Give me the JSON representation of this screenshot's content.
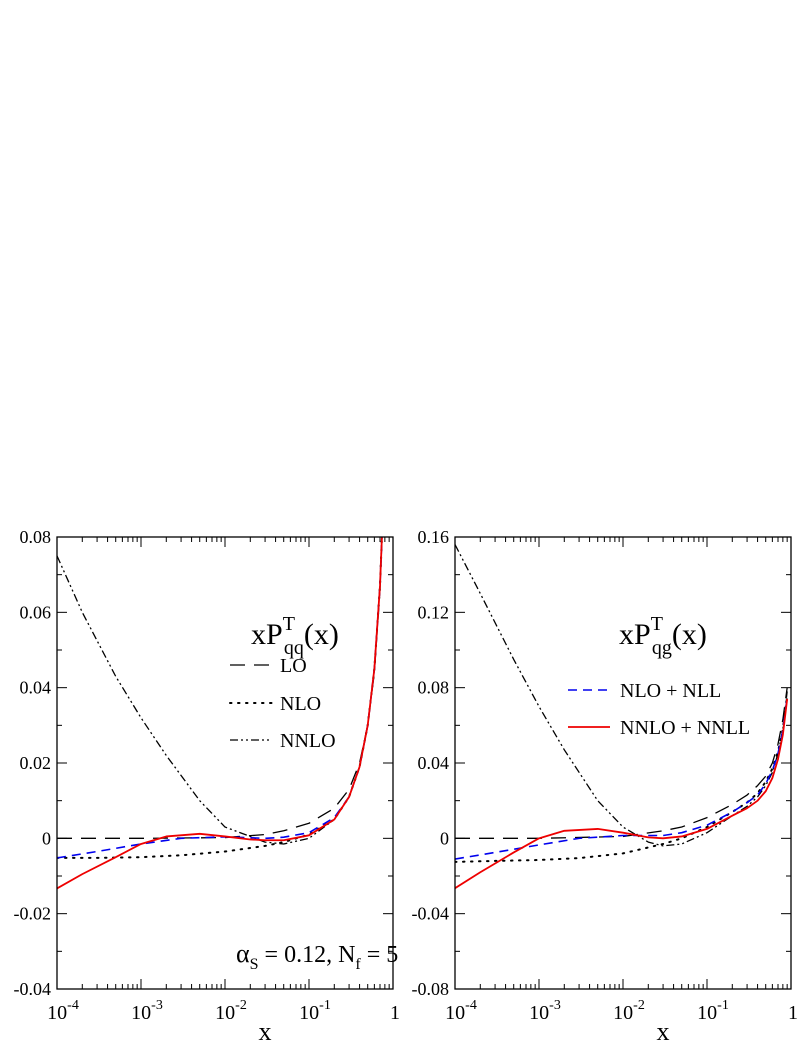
{
  "chart_data": [
    {
      "type": "line",
      "x_scale": "log",
      "xlim": [
        0.0001,
        1
      ],
      "ylim": [
        -0.04,
        0.08
      ],
      "x_ticks": [
        0.0001,
        0.001,
        0.01,
        0.1,
        1
      ],
      "x_tick_labels": [
        {
          "base": "10",
          "exp": "-4"
        },
        {
          "base": "10",
          "exp": "-3"
        },
        {
          "base": "10",
          "exp": "-2"
        },
        {
          "base": "10",
          "exp": "-1"
        },
        {
          "base": "1",
          "exp": ""
        }
      ],
      "y_ticks": [
        -0.04,
        -0.02,
        0,
        0.02,
        0.04,
        0.06,
        0.08
      ],
      "y_tick_labels": [
        "-0.04",
        "-0.02",
        "0",
        "0.02",
        "0.04",
        "0.06",
        "0.08"
      ],
      "xlabel": "x",
      "title": {
        "main": "xP",
        "sup": "T",
        "sub": "qq",
        "arg": "(x)"
      },
      "annotation": {
        "alpha": "α",
        "alpha_sub": "S",
        "alpha_rest": " = 0.12,  N",
        "nf_sub": "f",
        "nf_rest": " = 5"
      },
      "legend_position": "upper-right",
      "grid": false,
      "series": [
        {
          "name": "LO",
          "style": "long-dash",
          "color": "#000000",
          "x": [
            0.0001,
            0.001,
            0.01,
            0.03,
            0.05,
            0.1,
            0.2,
            0.3,
            0.4,
            0.5,
            0.6,
            0.7,
            0.8
          ],
          "y": [
            0,
            0,
            0.0002,
            0.001,
            0.002,
            0.004,
            0.008,
            0.013,
            0.02,
            0.03,
            0.044,
            0.066,
            0.1
          ]
        },
        {
          "name": "NLO",
          "style": "dotted",
          "color": "#000000",
          "x": [
            0.0001,
            0.0003,
            0.001,
            0.003,
            0.01,
            0.03,
            0.05,
            0.1,
            0.2,
            0.3,
            0.4,
            0.5,
            0.6,
            0.7,
            0.8
          ],
          "y": [
            -0.0052,
            -0.0052,
            -0.005,
            -0.0045,
            -0.0035,
            -0.002,
            -0.001,
            0.001,
            0.005,
            0.011,
            0.019,
            0.03,
            0.045,
            0.067,
            0.1
          ]
        },
        {
          "name": "NNLO",
          "style": "dash-dot",
          "color": "#000000",
          "x": [
            0.0001,
            0.0002,
            0.0005,
            0.001,
            0.002,
            0.005,
            0.01,
            0.02,
            0.03,
            0.05,
            0.1,
            0.2,
            0.3,
            0.4,
            0.5,
            0.6,
            0.7,
            0.8
          ],
          "y": [
            0.075,
            0.06,
            0.043,
            0.032,
            0.022,
            0.01,
            0.003,
            0.0005,
            -0.001,
            -0.0015,
            0,
            0.005,
            0.011,
            0.019,
            0.03,
            0.045,
            0.067,
            0.1
          ]
        },
        {
          "name": "NLO + NLL",
          "style": "dashed",
          "color": "#0000ee",
          "in_legend": false,
          "x": [
            0.0001,
            0.0003,
            0.001,
            0.003,
            0.01,
            0.03,
            0.05,
            0.1,
            0.2,
            0.3,
            0.4,
            0.5,
            0.6,
            0.7,
            0.8
          ],
          "y": [
            -0.0052,
            -0.0035,
            -0.0015,
            0,
            0.0004,
            0,
            0.0003,
            0.0015,
            0.0055,
            0.011,
            0.019,
            0.03,
            0.045,
            0.067,
            0.1
          ]
        },
        {
          "name": "NNLO + NNLL",
          "style": "solid",
          "color": "#ee0000",
          "in_legend": false,
          "x": [
            0.0001,
            0.0002,
            0.0005,
            0.001,
            0.002,
            0.005,
            0.01,
            0.02,
            0.03,
            0.05,
            0.1,
            0.2,
            0.3,
            0.4,
            0.5,
            0.6,
            0.7,
            0.8
          ],
          "y": [
            -0.0133,
            -0.0095,
            -0.005,
            -0.0015,
            0.0005,
            0.0012,
            0.0005,
            -0.0003,
            -0.0005,
            -0.0005,
            0.0008,
            0.005,
            0.011,
            0.019,
            0.03,
            0.045,
            0.067,
            0.1
          ]
        }
      ]
    },
    {
      "type": "line",
      "x_scale": "log",
      "xlim": [
        0.0001,
        1
      ],
      "ylim": [
        -0.08,
        0.16
      ],
      "x_ticks": [
        0.0001,
        0.001,
        0.01,
        0.1,
        1
      ],
      "x_tick_labels": [
        {
          "base": "10",
          "exp": "-4"
        },
        {
          "base": "10",
          "exp": "-3"
        },
        {
          "base": "10",
          "exp": "-2"
        },
        {
          "base": "10",
          "exp": "-1"
        },
        {
          "base": "1",
          "exp": ""
        }
      ],
      "y_ticks": [
        -0.08,
        -0.04,
        0,
        0.04,
        0.08,
        0.12,
        0.16
      ],
      "y_tick_labels": [
        "-0.08",
        "-0.04",
        "0",
        "0.04",
        "0.08",
        "0.12",
        "0.16"
      ],
      "xlabel": "x",
      "title": {
        "main": "xP",
        "sup": "T",
        "sub": "qg",
        "arg": "(x)"
      },
      "legend_position": "upper-right",
      "grid": false,
      "series": [
        {
          "name": "LO",
          "style": "long-dash",
          "color": "#000000",
          "in_legend": false,
          "x": [
            0.0001,
            0.001,
            0.01,
            0.03,
            0.05,
            0.1,
            0.2,
            0.3,
            0.4,
            0.5,
            0.6,
            0.7,
            0.8,
            0.9
          ],
          "y": [
            0,
            0,
            0.001,
            0.004,
            0.006,
            0.011,
            0.018,
            0.023,
            0.028,
            0.033,
            0.04,
            0.05,
            0.063,
            0.08
          ]
        },
        {
          "name": "NLO",
          "style": "dotted",
          "color": "#000000",
          "in_legend": false,
          "x": [
            0.0001,
            0.0003,
            0.001,
            0.003,
            0.01,
            0.03,
            0.05,
            0.1,
            0.2,
            0.3,
            0.4,
            0.5,
            0.6,
            0.7,
            0.8,
            0.9
          ],
          "y": [
            -0.0125,
            -0.012,
            -0.0115,
            -0.0105,
            -0.008,
            -0.003,
            0,
            0.006,
            0.014,
            0.019,
            0.024,
            0.03,
            0.037,
            0.046,
            0.058,
            0.075
          ]
        },
        {
          "name": "NNLO",
          "style": "dash-dot",
          "color": "#000000",
          "in_legend": false,
          "x": [
            0.0001,
            0.0002,
            0.0005,
            0.001,
            0.002,
            0.005,
            0.01,
            0.02,
            0.03,
            0.05,
            0.1,
            0.2,
            0.3,
            0.4,
            0.5,
            0.6,
            0.7,
            0.8,
            0.9
          ],
          "y": [
            0.156,
            0.13,
            0.095,
            0.07,
            0.047,
            0.02,
            0.006,
            -0.002,
            -0.004,
            -0.003,
            0.003,
            0.012,
            0.017,
            0.022,
            0.028,
            0.035,
            0.045,
            0.058,
            0.078
          ]
        },
        {
          "name": "NLO + NLL",
          "style": "dashed",
          "color": "#0000ee",
          "x": [
            0.0001,
            0.0003,
            0.001,
            0.003,
            0.01,
            0.03,
            0.05,
            0.1,
            0.2,
            0.3,
            0.4,
            0.5,
            0.6,
            0.7,
            0.8,
            0.9
          ],
          "y": [
            -0.011,
            -0.0075,
            -0.0035,
            0,
            0.0015,
            0.0015,
            0.003,
            0.007,
            0.014,
            0.019,
            0.023,
            0.029,
            0.036,
            0.045,
            0.057,
            0.075
          ]
        },
        {
          "name": "NNLO + NNLL",
          "style": "solid",
          "color": "#ee0000",
          "x": [
            0.0001,
            0.0002,
            0.0005,
            0.001,
            0.002,
            0.005,
            0.01,
            0.02,
            0.03,
            0.05,
            0.1,
            0.2,
            0.3,
            0.4,
            0.5,
            0.6,
            0.7,
            0.8,
            0.9
          ],
          "y": [
            -0.0265,
            -0.018,
            -0.0075,
            0,
            0.004,
            0.005,
            0.003,
            0.0005,
            0,
            0.001,
            0.005,
            0.012,
            0.016,
            0.02,
            0.025,
            0.032,
            0.042,
            0.055,
            0.074
          ]
        }
      ]
    }
  ]
}
